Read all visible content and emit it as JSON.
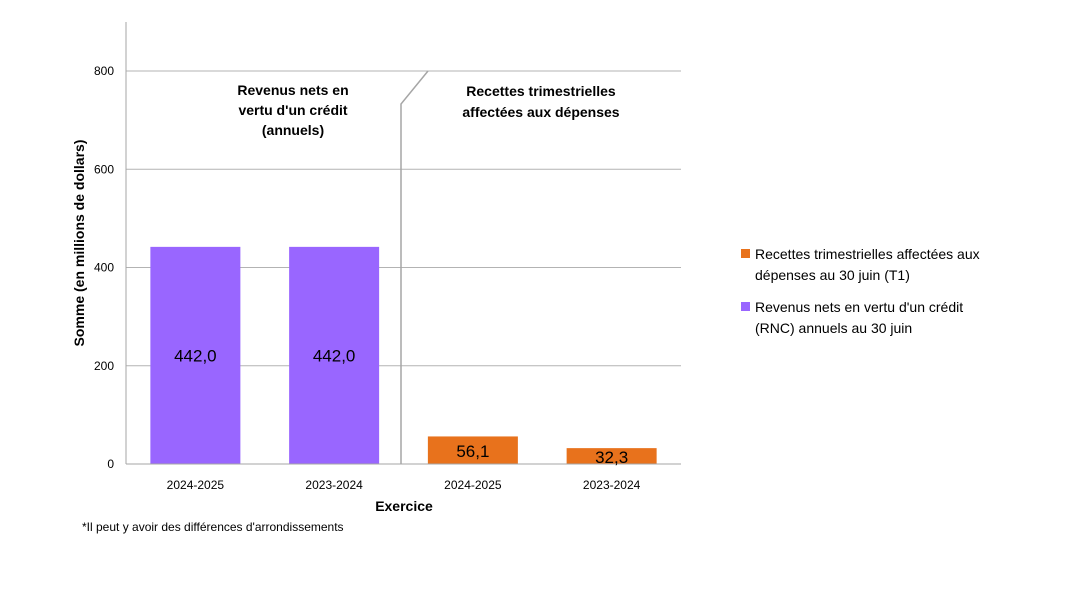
{
  "chart_data": {
    "type": "bar",
    "categories": [
      "2024-2025",
      "2023-2024",
      "2024-2025",
      "2023-2024"
    ],
    "series": [
      {
        "name": "Revenus nets en vertu d'un crédit (RNC) annuels au 30 juin",
        "values": [
          442.0,
          442.0,
          null,
          null
        ],
        "value_labels": [
          "442,0",
          "442,0",
          "",
          ""
        ],
        "color": "#9966ff"
      },
      {
        "name": "Recettes trimestrielles affectées aux dépenses au 30 juin (T1)",
        "values": [
          null,
          null,
          56.1,
          32.3
        ],
        "value_labels": [
          "",
          "",
          "56,1",
          "32,3"
        ],
        "color": "#e8721c"
      }
    ],
    "xlabel": "Exercice",
    "ylabel": "Somme (en millions de dollars)",
    "ylim": [
      0,
      800
    ],
    "yticks": [
      0,
      200,
      400,
      600,
      800
    ],
    "grid": true,
    "legend_position": "right",
    "section_labels": [
      "Revenus nets en vertu d'un crédit (annuels)",
      "Recettes trimestrielles affectées aux dépenses"
    ]
  },
  "legend": [
    {
      "label": "Recettes trimestrielles affectées aux dépenses au 30 juin (T1)",
      "color": "#e8721c"
    },
    {
      "label": "Revenus nets en vertu d'un crédit (RNC) annuels au 30 juin",
      "color": "#9966ff"
    }
  ],
  "footnote": "*Il peut y avoir des différences d'arrondissements"
}
